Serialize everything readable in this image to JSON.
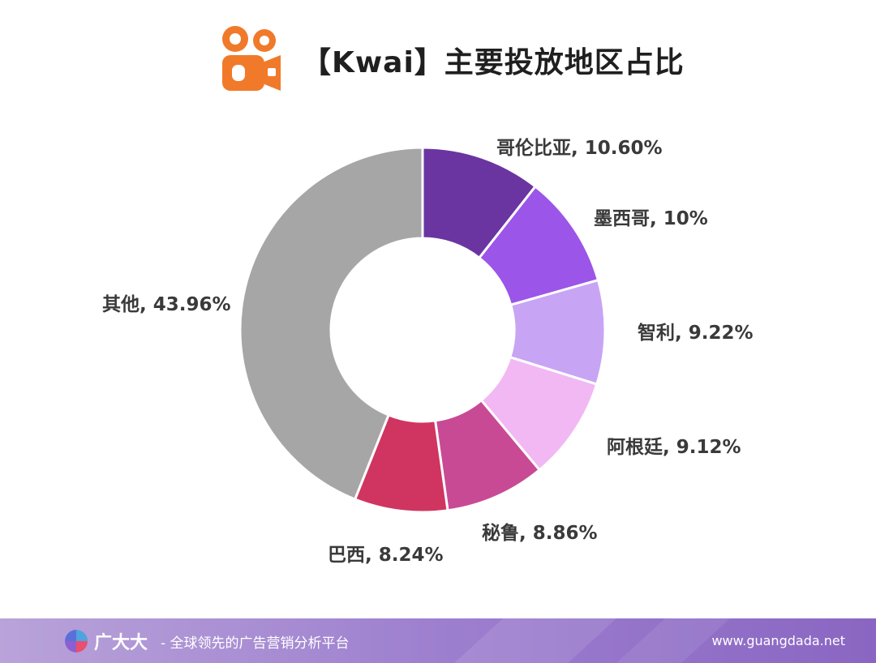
{
  "header": {
    "title": "【Kwai】主要投放地区占比",
    "logo_icon": "kwai-logo-icon"
  },
  "chart_data": {
    "type": "pie",
    "variant": "donut",
    "title": "【Kwai】主要投放地区占比",
    "start": "12-o'clock",
    "direction": "clockwise",
    "slices": [
      {
        "label": "哥伦比亚",
        "value": 10.6,
        "display": "哥伦比亚, 10.60%",
        "color": "#6a35a0"
      },
      {
        "label": "墨西哥",
        "value": 10.0,
        "display": "墨西哥, 10%",
        "color": "#9b55e8"
      },
      {
        "label": "智利",
        "value": 9.22,
        "display": "智利, 9.22%",
        "color": "#c8a4f4"
      },
      {
        "label": "阿根廷",
        "value": 9.12,
        "display": "阿根廷, 9.12%",
        "color": "#f1b8f3"
      },
      {
        "label": "秘鲁",
        "value": 8.86,
        "display": "秘鲁, 8.86%",
        "color": "#c94a94"
      },
      {
        "label": "巴西",
        "value": 8.24,
        "display": "巴西, 8.24%",
        "color": "#cf3560"
      },
      {
        "label": "其他",
        "value": 43.96,
        "display": "其他, 43.96%",
        "color": "#a6a6a6"
      }
    ]
  },
  "footer": {
    "brand": "广大大",
    "tagline": "- 全球领先的广告营销分析平台",
    "url": "www.guangdada.net",
    "logo_icon": "guangdada-logo-icon"
  }
}
